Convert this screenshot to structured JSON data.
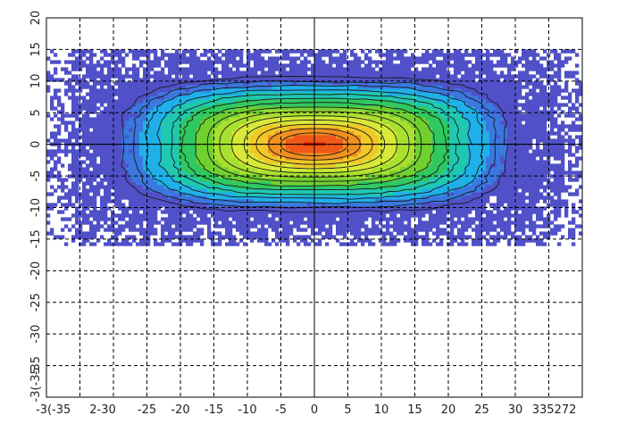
{
  "chart_data": {
    "type": "heatmap",
    "title": "",
    "xlabel": "",
    "ylabel": "",
    "xlim": [
      -40,
      40
    ],
    "ylim": [
      -40,
      20
    ],
    "x_tick_labels": [
      "-3(-35",
      "2-30",
      "-25",
      "-20",
      "-15",
      "-10",
      "-5",
      "0",
      "5",
      "10",
      "15",
      "20",
      "25",
      "30",
      "335272"
    ],
    "y_tick_labels": [
      "20",
      "15",
      "10",
      "5",
      "0",
      "-5",
      "-10",
      "-15",
      "-20",
      "-25",
      "-30",
      "-35",
      "-3(-35"
    ],
    "grid": true,
    "legend": "none",
    "data_region": {
      "x": [
        -40,
        40
      ],
      "y": [
        -15.5,
        15
      ]
    },
    "peak": {
      "x": 0,
      "y": 0
    },
    "contour_levels": 14,
    "colormap": [
      "#5050c8",
      "#3a78e0",
      "#1fb0e8",
      "#20c8b0",
      "#30c860",
      "#70d030",
      "#a8e030",
      "#d8e838",
      "#f0c828",
      "#f09020",
      "#f05818",
      "#e02010"
    ]
  }
}
